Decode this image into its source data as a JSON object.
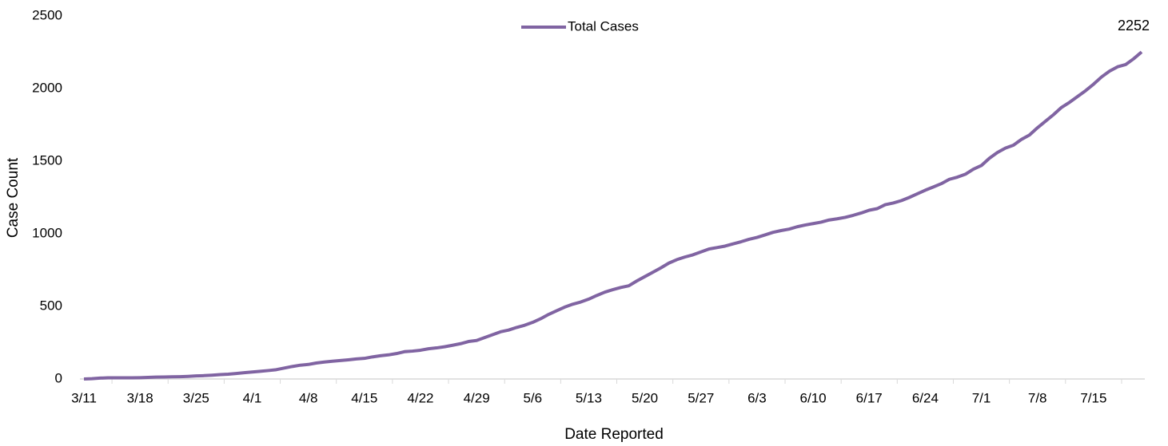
{
  "chart_data": {
    "type": "line",
    "x_label": "Date Reported",
    "y_label": "Case Count",
    "categories": [
      "3/11",
      null,
      null,
      null,
      null,
      null,
      null,
      "3/18",
      null,
      null,
      null,
      null,
      null,
      null,
      "3/25",
      null,
      null,
      null,
      null,
      null,
      null,
      "4/1",
      null,
      null,
      null,
      null,
      null,
      null,
      "4/8",
      null,
      null,
      null,
      null,
      null,
      null,
      "4/15",
      null,
      null,
      null,
      null,
      null,
      null,
      "4/22",
      null,
      null,
      null,
      null,
      null,
      null,
      "4/29",
      null,
      null,
      null,
      null,
      null,
      null,
      "5/6",
      null,
      null,
      null,
      null,
      null,
      null,
      "5/13",
      null,
      null,
      null,
      null,
      null,
      null,
      "5/20",
      null,
      null,
      null,
      null,
      null,
      null,
      "5/27",
      null,
      null,
      null,
      null,
      null,
      null,
      "6/3",
      null,
      null,
      null,
      null,
      null,
      null,
      "6/10",
      null,
      null,
      null,
      null,
      null,
      null,
      "6/17",
      null,
      null,
      null,
      null,
      null,
      null,
      "6/24",
      null,
      null,
      null,
      null,
      null,
      null,
      "7/1",
      null,
      null,
      null,
      null,
      null,
      null,
      "7/8",
      null,
      null,
      null,
      null,
      null,
      null,
      "7/15",
      null,
      null,
      null,
      null,
      null,
      null
    ],
    "series": [
      {
        "name": "Total Cases",
        "color": "#8064a2",
        "values": [
          0,
          2,
          6,
          8,
          8,
          8,
          8,
          9,
          11,
          13,
          14,
          15,
          16,
          18,
          21,
          23,
          26,
          30,
          33,
          38,
          43,
          48,
          53,
          58,
          64,
          75,
          86,
          95,
          100,
          110,
          117,
          122,
          127,
          132,
          138,
          142,
          152,
          160,
          166,
          175,
          188,
          192,
          198,
          208,
          214,
          222,
          232,
          243,
          258,
          265,
          285,
          305,
          325,
          337,
          355,
          370,
          390,
          415,
          445,
          470,
          495,
          515,
          530,
          550,
          575,
          598,
          615,
          630,
          642,
          675,
          705,
          735,
          765,
          798,
          822,
          840,
          855,
          875,
          895,
          905,
          915,
          930,
          945,
          962,
          975,
          992,
          1010,
          1022,
          1032,
          1048,
          1060,
          1070,
          1080,
          1095,
          1103,
          1113,
          1127,
          1143,
          1162,
          1173,
          1200,
          1212,
          1228,
          1250,
          1275,
          1300,
          1322,
          1345,
          1375,
          1390,
          1410,
          1445,
          1470,
          1520,
          1560,
          1590,
          1610,
          1650,
          1680,
          1730,
          1775,
          1820,
          1870,
          1905,
          1945,
          1985,
          2030,
          2080,
          2120,
          2150,
          2165,
          2205,
          2252
        ]
      }
    ],
    "ylim": [
      0,
      2500
    ],
    "yticks": [
      0,
      500,
      1000,
      1500,
      2000,
      2500
    ],
    "grid": false,
    "legend": "top"
  }
}
